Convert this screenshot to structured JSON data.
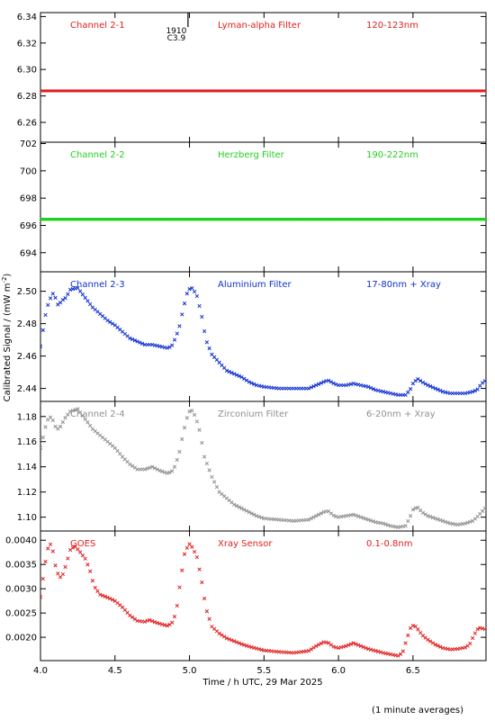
{
  "figure": {
    "xlabel": "Time / h UTC, 29 Mar 2025",
    "ylabel": "Calibrated Signal / (mW m",
    "ylabel_sup": "-2",
    "ylabel_close": ")",
    "footnote": "(1 minute averages)",
    "x_ticks": [
      "4.0",
      "4.5",
      "5.0",
      "5.5",
      "6.0",
      "6.5"
    ],
    "flare_annotation": {
      "time": "1910",
      "class": "C3.9",
      "x": 4.99
    }
  },
  "chart_data": [
    {
      "type": "scatter",
      "channel": "Channel 2-1",
      "filter": "Lyman-alpha Filter",
      "band": "120-123nm",
      "color": "#e02020",
      "xlim": [
        4.0,
        6.99
      ],
      "ylim": [
        6.245,
        6.343
      ],
      "y_ticks": [
        "6.26",
        "6.28",
        "6.30",
        "6.32",
        "6.34"
      ],
      "y_tick_values": [
        6.26,
        6.28,
        6.3,
        6.32,
        6.34
      ],
      "points": [
        [
          4.0,
          6.2838
        ],
        [
          7.0,
          6.2838
        ]
      ]
    },
    {
      "type": "scatter",
      "channel": "Channel 2-2",
      "filter": "Herzberg Filter",
      "band": "190-222nm",
      "color": "#20d020",
      "xlim": [
        4.0,
        6.99
      ],
      "ylim": [
        692.6,
        702.1
      ],
      "y_ticks": [
        "694",
        "696",
        "698",
        "700",
        "702"
      ],
      "y_tick_values": [
        694,
        696,
        698,
        700,
        702
      ],
      "points": [
        [
          4.0,
          696.45
        ],
        [
          7.0,
          696.45
        ]
      ]
    },
    {
      "type": "scatter",
      "channel": "Channel 2-3",
      "filter": "Aluminium Filter",
      "band": "17-80nm + Xray",
      "color": "#1030d0",
      "xlim": [
        4.0,
        6.99
      ],
      "ylim": [
        2.432,
        2.512
      ],
      "y_ticks": [
        "2.44",
        "2.46",
        "2.48",
        "2.50"
      ],
      "y_tick_values": [
        2.44,
        2.46,
        2.48,
        2.5
      ],
      "points": [
        [
          4.0,
          2.466
        ],
        [
          4.02,
          2.478
        ],
        [
          4.04,
          2.489
        ],
        [
          4.06,
          2.494
        ],
        [
          4.08,
          2.499
        ],
        [
          4.1,
          2.496
        ],
        [
          4.12,
          2.491
        ],
        [
          4.14,
          2.494
        ],
        [
          4.17,
          2.496
        ],
        [
          4.2,
          2.501
        ],
        [
          4.25,
          2.502
        ],
        [
          4.3,
          2.496
        ],
        [
          4.35,
          2.49
        ],
        [
          4.4,
          2.486
        ],
        [
          4.45,
          2.482
        ],
        [
          4.5,
          2.479
        ],
        [
          4.55,
          2.475
        ],
        [
          4.6,
          2.471
        ],
        [
          4.65,
          2.469
        ],
        [
          4.7,
          2.467
        ],
        [
          4.75,
          2.467
        ],
        [
          4.8,
          2.466
        ],
        [
          4.85,
          2.465
        ],
        [
          4.88,
          2.466
        ],
        [
          4.9,
          2.47
        ],
        [
          4.93,
          2.477
        ],
        [
          4.96,
          2.49
        ],
        [
          4.99,
          2.501
        ],
        [
          5.02,
          2.502
        ],
        [
          5.05,
          2.497
        ],
        [
          5.08,
          2.486
        ],
        [
          5.11,
          2.47
        ],
        [
          5.15,
          2.461
        ],
        [
          5.2,
          2.456
        ],
        [
          5.25,
          2.451
        ],
        [
          5.3,
          2.449
        ],
        [
          5.35,
          2.447
        ],
        [
          5.4,
          2.444
        ],
        [
          5.45,
          2.442
        ],
        [
          5.5,
          2.441
        ],
        [
          5.6,
          2.44
        ],
        [
          5.7,
          2.44
        ],
        [
          5.8,
          2.44
        ],
        [
          5.85,
          2.442
        ],
        [
          5.9,
          2.444
        ],
        [
          5.93,
          2.445
        ],
        [
          5.97,
          2.443
        ],
        [
          6.0,
          2.442
        ],
        [
          6.05,
          2.442
        ],
        [
          6.1,
          2.443
        ],
        [
          6.15,
          2.442
        ],
        [
          6.2,
          2.441
        ],
        [
          6.25,
          2.439
        ],
        [
          6.3,
          2.438
        ],
        [
          6.35,
          2.437
        ],
        [
          6.4,
          2.436
        ],
        [
          6.45,
          2.436
        ],
        [
          6.48,
          2.439
        ],
        [
          6.5,
          2.443
        ],
        [
          6.53,
          2.446
        ],
        [
          6.56,
          2.444
        ],
        [
          6.6,
          2.442
        ],
        [
          6.65,
          2.44
        ],
        [
          6.7,
          2.438
        ],
        [
          6.75,
          2.437
        ],
        [
          6.8,
          2.437
        ],
        [
          6.85,
          2.437
        ],
        [
          6.9,
          2.438
        ],
        [
          6.93,
          2.439
        ],
        [
          6.96,
          2.443
        ],
        [
          6.99,
          2.445
        ]
      ]
    },
    {
      "type": "scatter",
      "channel": "Channel 2-4",
      "filter": "Zirconium Filter",
      "band": "6-20nm + Xray",
      "color": "#909090",
      "xlim": [
        4.0,
        6.99
      ],
      "ylim": [
        1.089,
        1.192
      ],
      "y_ticks": [
        "1.10",
        "1.12",
        "1.14",
        "1.16",
        "1.18"
      ],
      "y_tick_values": [
        1.1,
        1.12,
        1.14,
        1.16,
        1.18
      ],
      "points": [
        [
          4.0,
          1.155
        ],
        [
          4.02,
          1.165
        ],
        [
          4.04,
          1.175
        ],
        [
          4.06,
          1.18
        ],
        [
          4.08,
          1.178
        ],
        [
          4.1,
          1.172
        ],
        [
          4.12,
          1.17
        ],
        [
          4.14,
          1.173
        ],
        [
          4.16,
          1.178
        ],
        [
          4.2,
          1.184
        ],
        [
          4.25,
          1.186
        ],
        [
          4.3,
          1.178
        ],
        [
          4.35,
          1.17
        ],
        [
          4.4,
          1.165
        ],
        [
          4.45,
          1.16
        ],
        [
          4.5,
          1.155
        ],
        [
          4.55,
          1.148
        ],
        [
          4.6,
          1.142
        ],
        [
          4.65,
          1.138
        ],
        [
          4.7,
          1.138
        ],
        [
          4.75,
          1.14
        ],
        [
          4.8,
          1.137
        ],
        [
          4.85,
          1.135
        ],
        [
          4.88,
          1.136
        ],
        [
          4.9,
          1.14
        ],
        [
          4.93,
          1.15
        ],
        [
          4.96,
          1.168
        ],
        [
          4.99,
          1.182
        ],
        [
          5.01,
          1.186
        ],
        [
          5.04,
          1.18
        ],
        [
          5.07,
          1.168
        ],
        [
          5.1,
          1.148
        ],
        [
          5.15,
          1.132
        ],
        [
          5.2,
          1.12
        ],
        [
          5.25,
          1.115
        ],
        [
          5.3,
          1.11
        ],
        [
          5.35,
          1.107
        ],
        [
          5.4,
          1.104
        ],
        [
          5.45,
          1.101
        ],
        [
          5.5,
          1.099
        ],
        [
          5.6,
          1.098
        ],
        [
          5.7,
          1.097
        ],
        [
          5.8,
          1.098
        ],
        [
          5.85,
          1.101
        ],
        [
          5.9,
          1.104
        ],
        [
          5.93,
          1.105
        ],
        [
          5.97,
          1.101
        ],
        [
          6.0,
          1.1
        ],
        [
          6.05,
          1.101
        ],
        [
          6.1,
          1.102
        ],
        [
          6.15,
          1.1
        ],
        [
          6.2,
          1.098
        ],
        [
          6.25,
          1.096
        ],
        [
          6.3,
          1.095
        ],
        [
          6.35,
          1.093
        ],
        [
          6.4,
          1.092
        ],
        [
          6.45,
          1.093
        ],
        [
          6.48,
          1.1
        ],
        [
          6.5,
          1.106
        ],
        [
          6.53,
          1.108
        ],
        [
          6.56,
          1.104
        ],
        [
          6.6,
          1.101
        ],
        [
          6.65,
          1.099
        ],
        [
          6.7,
          1.097
        ],
        [
          6.75,
          1.095
        ],
        [
          6.8,
          1.094
        ],
        [
          6.85,
          1.095
        ],
        [
          6.9,
          1.097
        ],
        [
          6.93,
          1.1
        ],
        [
          6.96,
          1.104
        ],
        [
          6.99,
          1.108
        ]
      ]
    },
    {
      "type": "scatter",
      "channel": "GOES",
      "filter": "Xray Sensor",
      "band": "0.1-0.8nm",
      "color": "#e02020",
      "xlim": [
        4.0,
        6.99
      ],
      "ylim": [
        0.00152,
        0.00419
      ],
      "y_ticks": [
        "0.0020",
        "0.0025",
        "0.0030",
        "0.0035",
        "0.0040"
      ],
      "y_tick_values": [
        0.002,
        0.0025,
        0.003,
        0.0035,
        0.004
      ],
      "points": [
        [
          4.0,
          0.00283
        ],
        [
          4.02,
          0.00328
        ],
        [
          4.04,
          0.0037
        ],
        [
          4.06,
          0.00396
        ],
        [
          4.08,
          0.00383
        ],
        [
          4.1,
          0.00348
        ],
        [
          4.12,
          0.00328
        ],
        [
          4.14,
          0.00322
        ],
        [
          4.16,
          0.00338
        ],
        [
          4.2,
          0.0038
        ],
        [
          4.23,
          0.00388
        ],
        [
          4.26,
          0.00378
        ],
        [
          4.3,
          0.00362
        ],
        [
          4.33,
          0.0034
        ],
        [
          4.36,
          0.00305
        ],
        [
          4.4,
          0.00288
        ],
        [
          4.45,
          0.00282
        ],
        [
          4.5,
          0.00275
        ],
        [
          4.55,
          0.00262
        ],
        [
          4.6,
          0.00245
        ],
        [
          4.65,
          0.00234
        ],
        [
          4.7,
          0.00232
        ],
        [
          4.73,
          0.00236
        ],
        [
          4.76,
          0.00232
        ],
        [
          4.8,
          0.00228
        ],
        [
          4.85,
          0.00224
        ],
        [
          4.88,
          0.00228
        ],
        [
          4.91,
          0.0025
        ],
        [
          4.94,
          0.00318
        ],
        [
          4.97,
          0.00378
        ],
        [
          5.0,
          0.00392
        ],
        [
          5.02,
          0.00385
        ],
        [
          5.05,
          0.00365
        ],
        [
          5.08,
          0.0032
        ],
        [
          5.11,
          0.0026
        ],
        [
          5.15,
          0.00222
        ],
        [
          5.2,
          0.00208
        ],
        [
          5.25,
          0.00198
        ],
        [
          5.3,
          0.00192
        ],
        [
          5.35,
          0.00186
        ],
        [
          5.4,
          0.00181
        ],
        [
          5.45,
          0.00177
        ],
        [
          5.5,
          0.00173
        ],
        [
          5.6,
          0.0017
        ],
        [
          5.7,
          0.00168
        ],
        [
          5.8,
          0.00172
        ],
        [
          5.85,
          0.00182
        ],
        [
          5.9,
          0.0019
        ],
        [
          5.93,
          0.00189
        ],
        [
          5.97,
          0.0018
        ],
        [
          6.0,
          0.00178
        ],
        [
          6.05,
          0.00182
        ],
        [
          6.1,
          0.00188
        ],
        [
          6.15,
          0.00182
        ],
        [
          6.2,
          0.00176
        ],
        [
          6.25,
          0.00172
        ],
        [
          6.3,
          0.00168
        ],
        [
          6.35,
          0.00165
        ],
        [
          6.4,
          0.00162
        ],
        [
          6.43,
          0.00168
        ],
        [
          6.46,
          0.00198
        ],
        [
          6.49,
          0.00225
        ],
        [
          6.52,
          0.00222
        ],
        [
          6.56,
          0.00205
        ],
        [
          6.6,
          0.00195
        ],
        [
          6.65,
          0.00185
        ],
        [
          6.7,
          0.00178
        ],
        [
          6.75,
          0.00175
        ],
        [
          6.8,
          0.00176
        ],
        [
          6.85,
          0.00179
        ],
        [
          6.88,
          0.00185
        ],
        [
          6.91,
          0.00205
        ],
        [
          6.94,
          0.0022
        ],
        [
          6.97,
          0.00218
        ],
        [
          6.99,
          0.00216
        ]
      ]
    }
  ]
}
